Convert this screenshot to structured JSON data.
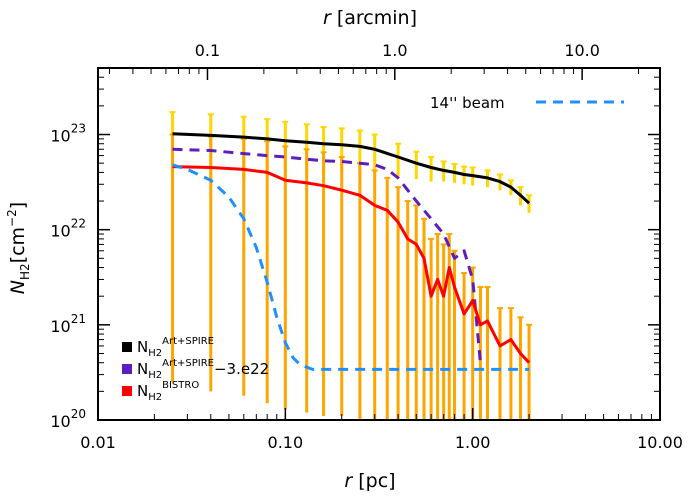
{
  "chart_data": {
    "type": "line",
    "xlabel": "r [pc]",
    "x2label": "r [arcmin]",
    "ylabel": "N_H2[cm^-2]",
    "xscale": "log",
    "yscale": "log",
    "xlim": [
      0.01,
      10
    ],
    "ylim": [
      1e+20,
      5e+23
    ],
    "x_ticks": [
      "0.01",
      "0.10",
      "1.00",
      "10.00"
    ],
    "x2_ticks": [
      "0.1",
      "1.0",
      "10.0"
    ],
    "y_ticks": [
      {
        "base": "10",
        "exp": "20"
      },
      {
        "base": "10",
        "exp": "21"
      },
      {
        "base": "10",
        "exp": "22"
      },
      {
        "base": "10",
        "exp": "23"
      }
    ],
    "series": [
      {
        "name": "N_H2^Art+SPIRE",
        "legend_main": "N",
        "legend_sub": "H2",
        "legend_sup": "Art+SPIRE",
        "legend_suffix": "",
        "color": "#000000",
        "errcolor": "#FFD700",
        "x": [
          0.025,
          0.04,
          0.06,
          0.08,
          0.1,
          0.13,
          0.16,
          0.2,
          0.25,
          0.3,
          0.4,
          0.5,
          0.6,
          0.7,
          0.8,
          0.9,
          1.0,
          1.2,
          1.4,
          1.6,
          1.8,
          2.0
        ],
        "y": [
          1.02e+23,
          9.8e+22,
          9.4e+22,
          9e+22,
          8.6e+22,
          8.3e+22,
          8e+22,
          7.8e+22,
          7.5e+22,
          7e+22,
          5.8e+22,
          5e+22,
          4.5e+22,
          4.2e+22,
          4e+22,
          3.8e+22,
          3.7e+22,
          3.5e+22,
          3.2e+22,
          2.8e+22,
          2.3e+22,
          1.9e+22
        ],
        "err": [
          7e+22,
          6.5e+22,
          6e+22,
          5.5e+22,
          5e+22,
          4.5e+22,
          4e+22,
          3.8e+22,
          3.5e+22,
          3e+22,
          2.2e+22,
          1.6e+22,
          1.3e+22,
          1e+22,
          9e+21,
          8e+21,
          8e+21,
          7e+21,
          6e+21,
          5e+21,
          5e+21,
          4e+21
        ]
      },
      {
        "name": "N_H2^Art+SPIRE-3.e22",
        "legend_main": "N",
        "legend_sub": "H2",
        "legend_sup": "Art+SPIRE",
        "legend_suffix": "−3.e22",
        "color": "#5B1FBF",
        "dashed": true,
        "x": [
          0.025,
          0.04,
          0.06,
          0.08,
          0.1,
          0.13,
          0.16,
          0.2,
          0.25,
          0.3,
          0.35,
          0.4,
          0.5,
          0.6,
          0.7,
          0.8,
          0.9,
          1.0,
          1.1
        ],
        "y": [
          7e+22,
          6.8e+22,
          6.3e+22,
          6e+22,
          5.8e+22,
          5.5e+22,
          5.3e+22,
          5.2e+22,
          5e+22,
          4.8e+22,
          4.3e+22,
          3.5e+22,
          2e+22,
          1.3e+22,
          9e+21,
          5e+21,
          6e+21,
          3e+21,
          4e+20
        ]
      },
      {
        "name": "N_H2^BISTRO",
        "legend_main": "N",
        "legend_sub": "H2",
        "legend_sup": "BISTRO",
        "legend_suffix": "",
        "color": "#FF0000",
        "errcolor": "#FFA500",
        "x": [
          0.025,
          0.04,
          0.06,
          0.08,
          0.1,
          0.13,
          0.16,
          0.2,
          0.25,
          0.3,
          0.35,
          0.4,
          0.45,
          0.5,
          0.55,
          0.6,
          0.65,
          0.7,
          0.75,
          0.8,
          0.9,
          1.0,
          1.1,
          1.2,
          1.4,
          1.6,
          1.8,
          2.0
        ],
        "y": [
          4.6e+22,
          4.5e+22,
          4.3e+22,
          4e+22,
          3.3e+22,
          3.1e+22,
          2.9e+22,
          2.6e+22,
          2.3e+22,
          1.8e+22,
          1.6e+22,
          1.2e+22,
          8e+21,
          7e+21,
          5e+21,
          2e+21,
          3e+21,
          2e+21,
          4e+21,
          2.5e+21,
          1.3e+21,
          1.8e+21,
          1e+21,
          1.1e+21,
          6e+20,
          7e+20,
          5e+20,
          4e+20
        ],
        "err_lo": [
          2.5e+20,
          2e+20,
          1.8e+20,
          1.5e+20,
          1.3e+20,
          1.2e+20,
          1.1e+20,
          1.1e+20,
          1e+20,
          1e+20,
          1e+20,
          1e+20,
          1e+20,
          1e+20,
          1e+20,
          1e+20,
          1e+20,
          1e+20,
          1e+20,
          1e+20,
          1e+20,
          1e+20,
          1e+20,
          1e+20,
          1e+20,
          1e+20,
          1e+20,
          1e+20
        ],
        "err_hi": [
          1e+23,
          9.5e+22,
          9e+22,
          8.5e+22,
          7.5e+22,
          7e+22,
          6.5e+22,
          5.8e+22,
          5e+22,
          4.2e+22,
          3.5e+22,
          2.8e+22,
          2e+22,
          1.8e+22,
          1.3e+22,
          8e+21,
          9e+21,
          7e+21,
          9e+21,
          6e+21,
          3.5e+21,
          4e+21,
          2.5e+21,
          2.5e+21,
          1.5e+21,
          1.5e+21,
          1.2e+21,
          1e+21
        ]
      },
      {
        "name": "14'' beam",
        "color": "#1E90FF",
        "dashed": true,
        "x": [
          0.025,
          0.03,
          0.04,
          0.05,
          0.06,
          0.07,
          0.08,
          0.09,
          0.1,
          0.11,
          0.12,
          0.14,
          0.16,
          0.2,
          1.0,
          2.0
        ],
        "y": [
          4.8e+22,
          4.3e+22,
          3.3e+22,
          2.2e+22,
          1.3e+22,
          6.5e+21,
          2.8e+21,
          1.2e+21,
          6.5e+20,
          4.5e+20,
          3.8e+20,
          3.4e+20,
          3.4e+20,
          3.4e+20,
          3.4e+20,
          3.4e+20
        ]
      }
    ],
    "beam_legend_label": "14'' beam",
    "beam_legend_color": "#1E90FF",
    "grid": false
  }
}
